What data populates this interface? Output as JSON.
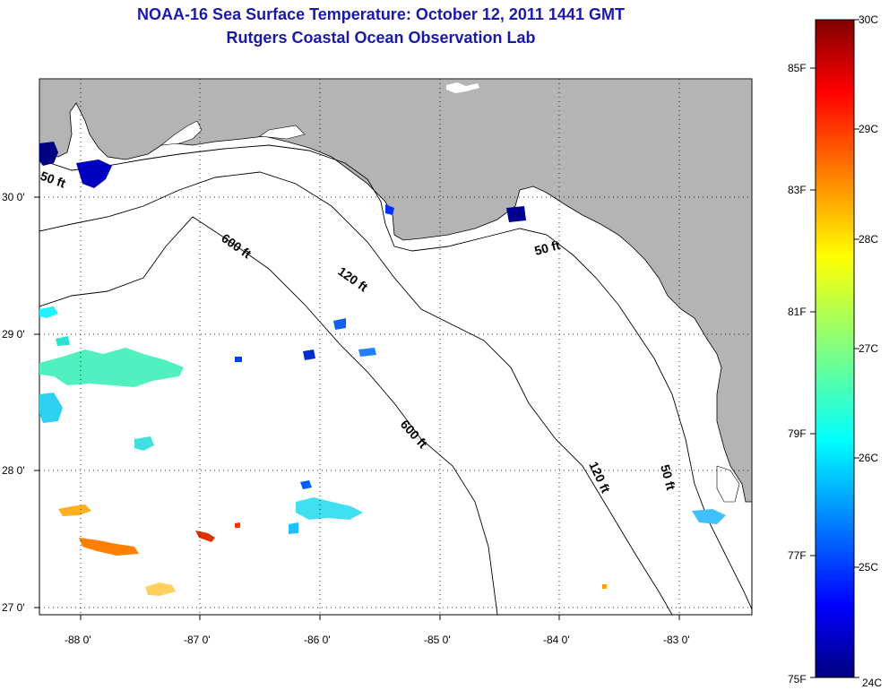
{
  "title": "NOAA-16 Sea Surface Temperature:  October 12, 2011 1441 GMT",
  "subtitle": "Rutgers Coastal Ocean Observation Lab",
  "axes": {
    "lon_ticks": [
      "-88 0'",
      "-87 0'",
      "-86 0'",
      "-85 0'",
      "-84 0'",
      "-83 0'"
    ],
    "lat_ticks": [
      "30 0'",
      "29 0'",
      "28 0'",
      "27 0'"
    ]
  },
  "contours": {
    "depth_50a": "50 ft",
    "depth_50b": "50 ft",
    "depth_50c": "50 ft",
    "depth_120a": "120 ft",
    "depth_120b": "120 ft",
    "depth_600a": "600 ft",
    "depth_600b": "600 ft"
  },
  "colorbar": {
    "celsius": [
      "30C",
      "29C",
      "28C",
      "27C",
      "26C",
      "25C",
      "24C"
    ],
    "fahrenheit": [
      "85F",
      "83F",
      "81F",
      "79F",
      "77F",
      "75F"
    ]
  },
  "colors": {
    "land": "#b4b4b4",
    "title": "#1a1aa6",
    "cold": "#000080",
    "hot": "#800000"
  }
}
